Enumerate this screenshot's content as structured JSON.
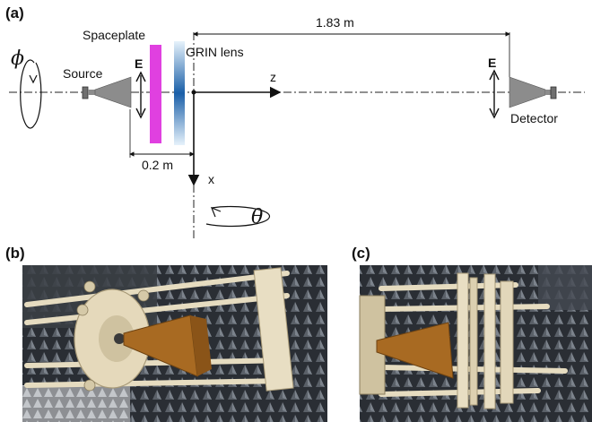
{
  "panel_a": {
    "label": "(a)",
    "distance_long": "1.83 m",
    "distance_short": "0.2 m",
    "spaceplate": "Spaceplate",
    "grin_lens": "GRIN lens",
    "source": "Source",
    "detector": "Detector",
    "field_left": "E",
    "field_right": "E",
    "axis_z": "z",
    "axis_x": "x",
    "rot_phi": "ϕ",
    "rot_theta": "θ"
  },
  "panel_b": {
    "label": "(b)"
  },
  "panel_c": {
    "label": "(c)"
  },
  "colors": {
    "spaceplate": "#e040e0",
    "grin_dark": "#1a5fa8",
    "grin_light": "#d8ecf8",
    "horn": "#8c8c8c",
    "chamber": "#2c3036",
    "frame": "#e6dcc0"
  }
}
